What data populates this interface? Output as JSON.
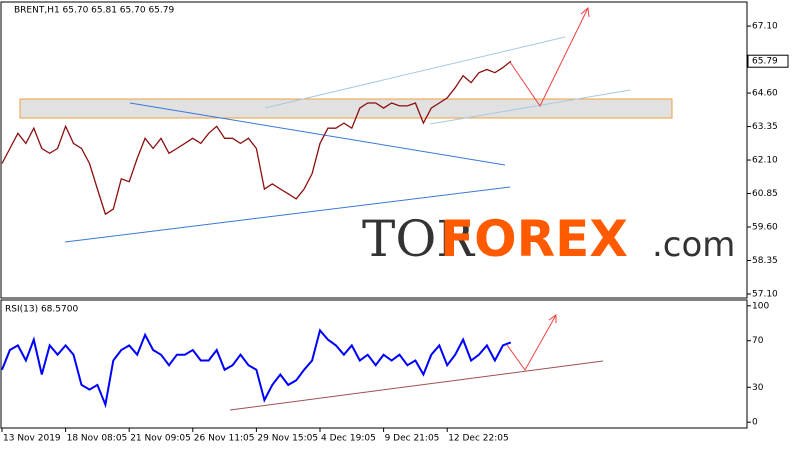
{
  "chart_data": [
    {
      "type": "line",
      "title": "BRENT,H1 65.70 65.81 65.70 65.79",
      "categories": [
        "13 Nov 2019",
        null,
        null,
        null,
        null,
        null,
        null,
        null,
        "18 Nov 08:05",
        null,
        null,
        null,
        null,
        null,
        null,
        null,
        "21 Nov 09:05",
        null,
        null,
        null,
        null,
        null,
        null,
        null,
        "26 Nov 11:05",
        null,
        null,
        null,
        null,
        null,
        null,
        null,
        "29 Nov 15:05",
        null,
        null,
        null,
        null,
        null,
        null,
        null,
        "4 Dec 19:05",
        null,
        null,
        null,
        null,
        null,
        null,
        null,
        "9 Dec 21:05",
        null,
        null,
        null,
        null,
        null,
        null,
        null,
        "12 Dec 22:05",
        null,
        null,
        null,
        null,
        null,
        null,
        null,
        null
      ],
      "series": [
        {
          "name": "BRENT",
          "color": "#8b1010",
          "values": [
            61.97,
            62.53,
            63.1,
            62.72,
            63.29,
            62.53,
            62.35,
            62.53,
            63.36,
            62.72,
            62.53,
            61.97,
            61.02,
            60.08,
            60.27,
            61.4,
            61.29,
            62.16,
            62.91,
            62.53,
            62.91,
            62.35,
            62.53,
            62.72,
            62.91,
            62.72,
            63.1,
            63.36,
            62.91,
            62.91,
            62.72,
            62.91,
            62.53,
            61.02,
            61.21,
            61.02,
            60.84,
            60.65,
            61.02,
            61.59,
            62.72,
            63.29,
            63.29,
            63.48,
            63.29,
            64.04,
            64.23,
            64.23,
            64.04,
            64.23,
            64.12,
            64.12,
            64.23,
            63.48,
            64.04,
            64.23,
            64.42,
            64.8,
            65.25,
            64.99,
            65.36,
            65.48,
            65.36,
            65.55,
            65.79
          ]
        }
      ],
      "ylim": [
        56.95,
        68.0
      ],
      "yticks": [
        {
          "value": 57.1,
          "label": "57.10"
        },
        {
          "value": 58.35,
          "label": "58.35"
        },
        {
          "value": 59.6,
          "label": "59.60"
        },
        {
          "value": 60.85,
          "label": "60.85"
        },
        {
          "value": 62.1,
          "label": "62.10"
        },
        {
          "value": 63.35,
          "label": "63.35"
        },
        {
          "value": 64.6,
          "label": "64.60"
        },
        {
          "value": 67.1,
          "label": "67.10"
        }
      ],
      "watermark": [
        "TOR",
        "FOREX",
        ".com"
      ]
    },
    {
      "type": "line",
      "title": "RSI(13) 68.5700",
      "series": [
        {
          "name": "RSI(13)",
          "color": "#0000ff",
          "values": [
            45,
            62,
            66,
            53,
            71,
            41,
            66,
            58,
            66,
            58,
            32,
            28,
            32,
            15,
            53,
            62,
            66,
            58,
            75,
            62,
            58,
            49,
            58,
            58,
            62,
            53,
            53,
            62,
            45,
            49,
            58,
            49,
            45,
            19,
            32,
            41,
            32,
            36,
            45,
            53,
            79,
            71,
            66,
            58,
            66,
            53,
            58,
            49,
            58,
            53,
            58,
            49,
            53,
            41,
            58,
            66,
            49,
            58,
            71,
            53,
            58,
            66,
            53,
            66,
            68.57
          ]
        }
      ],
      "ylim": [
        -5,
        105
      ],
      "yticks": [
        0,
        30,
        70,
        100
      ]
    }
  ]
}
